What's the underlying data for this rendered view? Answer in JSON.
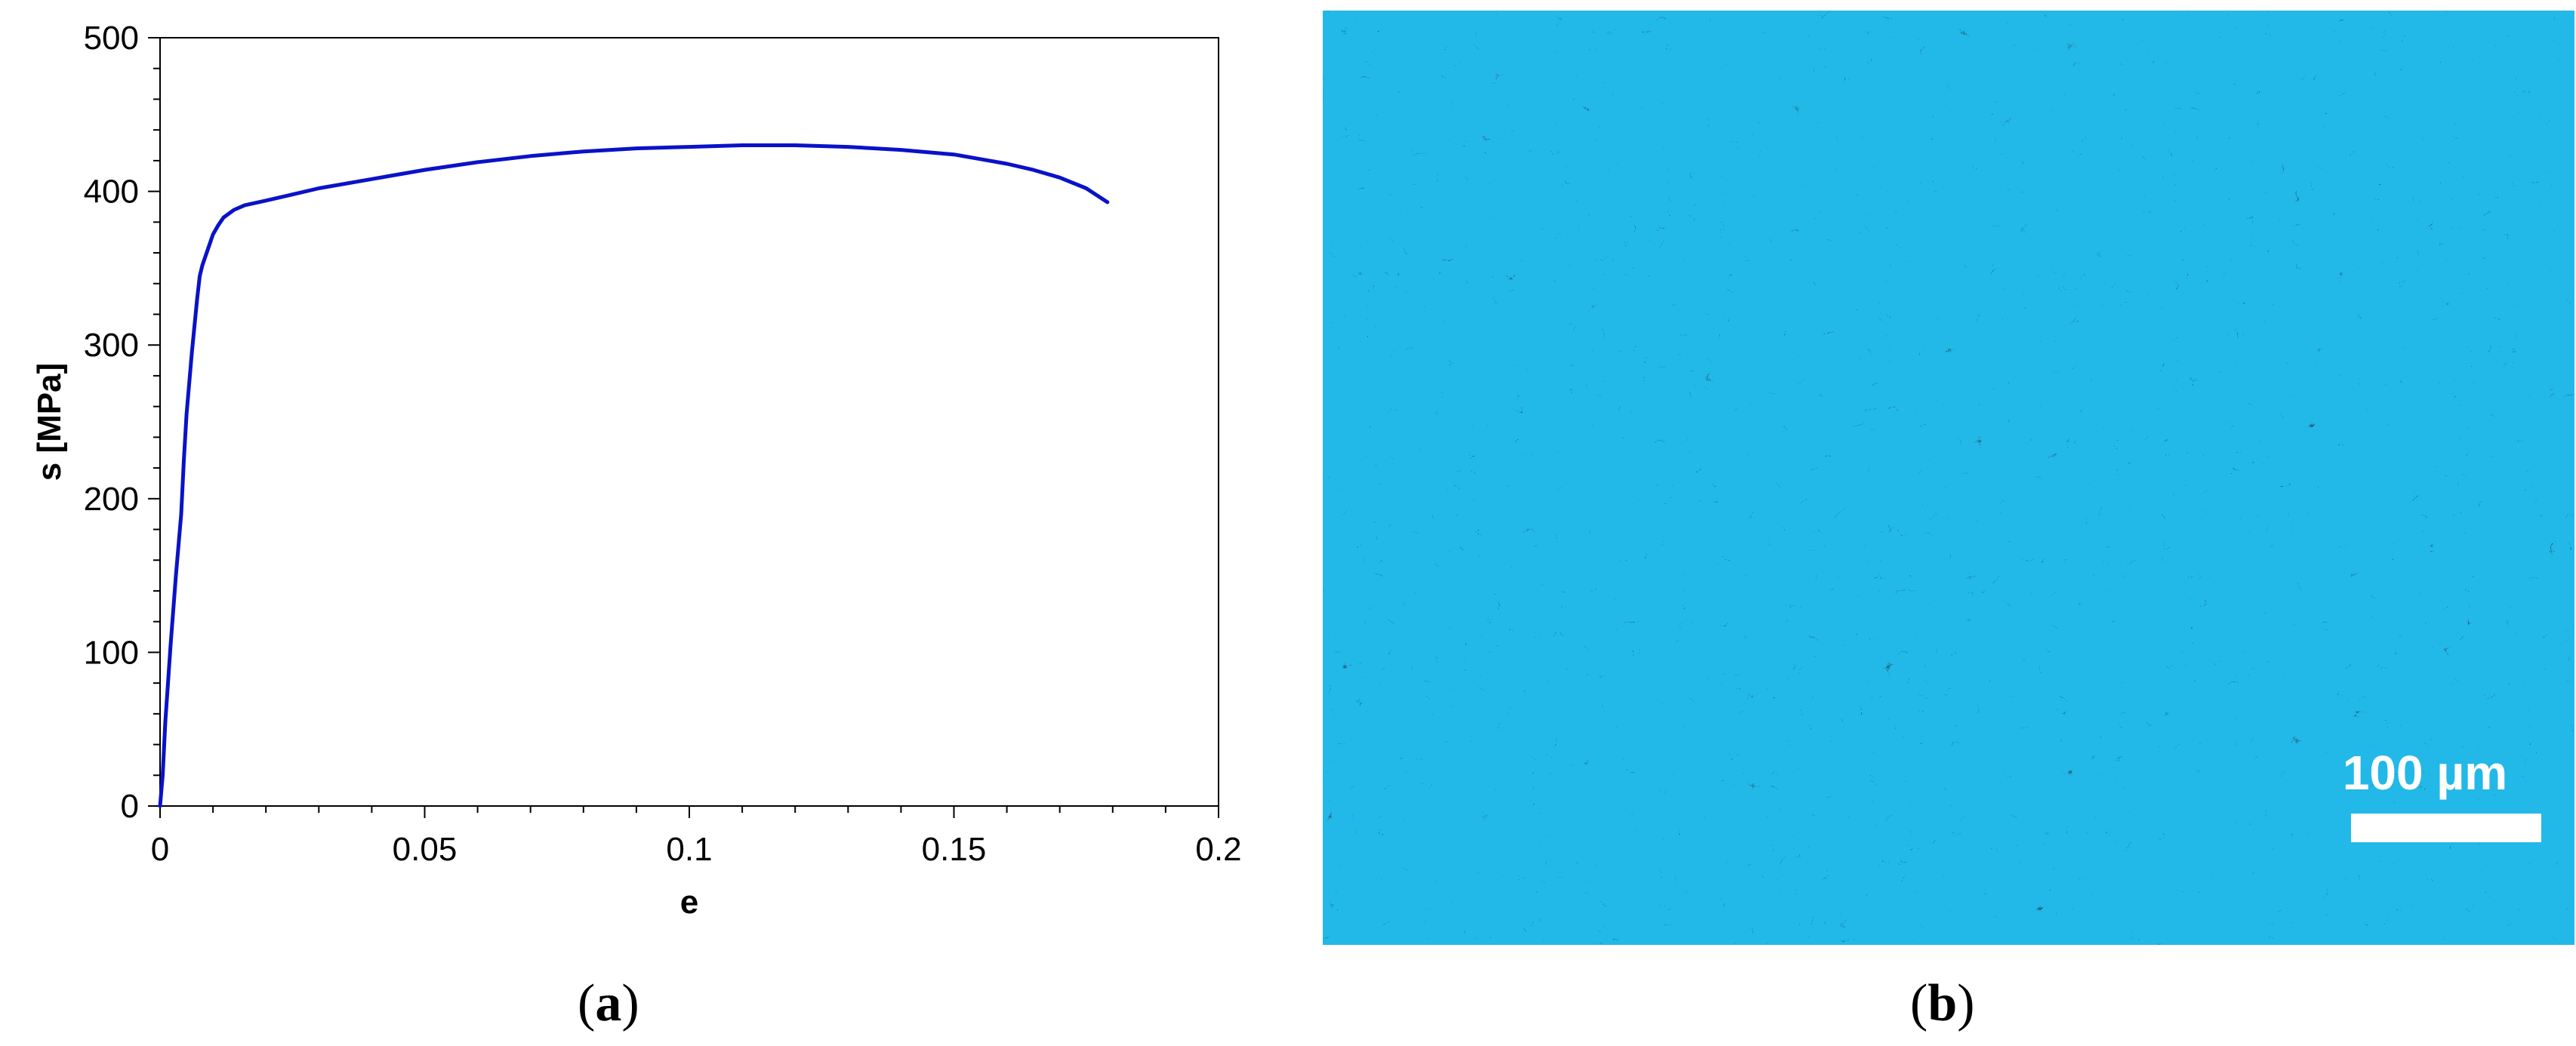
{
  "chart_data": {
    "type": "line",
    "xlabel": "e",
    "ylabel": "s [MPa]",
    "xlim": [
      0,
      0.2
    ],
    "ylim": [
      0,
      500
    ],
    "x_ticks": [
      "0",
      "0.05",
      "0.1",
      "0.15",
      "0.2"
    ],
    "y_ticks": [
      "0",
      "100",
      "200",
      "300",
      "400",
      "500"
    ],
    "grid": false,
    "series": [
      {
        "color": "#0a12c8",
        "x": [
          0,
          0.0005,
          0.001,
          0.0015,
          0.002,
          0.003,
          0.004,
          0.0045,
          0.005,
          0.006,
          0.007,
          0.0075,
          0.008,
          0.009,
          0.01,
          0.011,
          0.012,
          0.014,
          0.016,
          0.02,
          0.025,
          0.03,
          0.04,
          0.05,
          0.06,
          0.07,
          0.08,
          0.09,
          0.1,
          0.11,
          0.12,
          0.13,
          0.14,
          0.15,
          0.155,
          0.16,
          0.165,
          0.17,
          0.175,
          0.179
        ],
        "y": [
          0,
          20,
          55,
          80,
          105,
          150,
          190,
          225,
          255,
          295,
          330,
          345,
          352,
          362,
          372,
          378,
          383,
          388,
          391,
          394,
          398,
          402,
          408,
          414,
          419,
          423,
          426,
          428,
          429,
          430,
          430,
          429,
          427,
          424,
          421,
          418,
          414,
          409,
          402,
          393
        ]
      }
    ]
  },
  "panels": {
    "a_label": "a",
    "b_label": "b",
    "open_paren": "(",
    "close_paren": ")"
  },
  "micrograph": {
    "scale_bar_label": "100 µm"
  }
}
